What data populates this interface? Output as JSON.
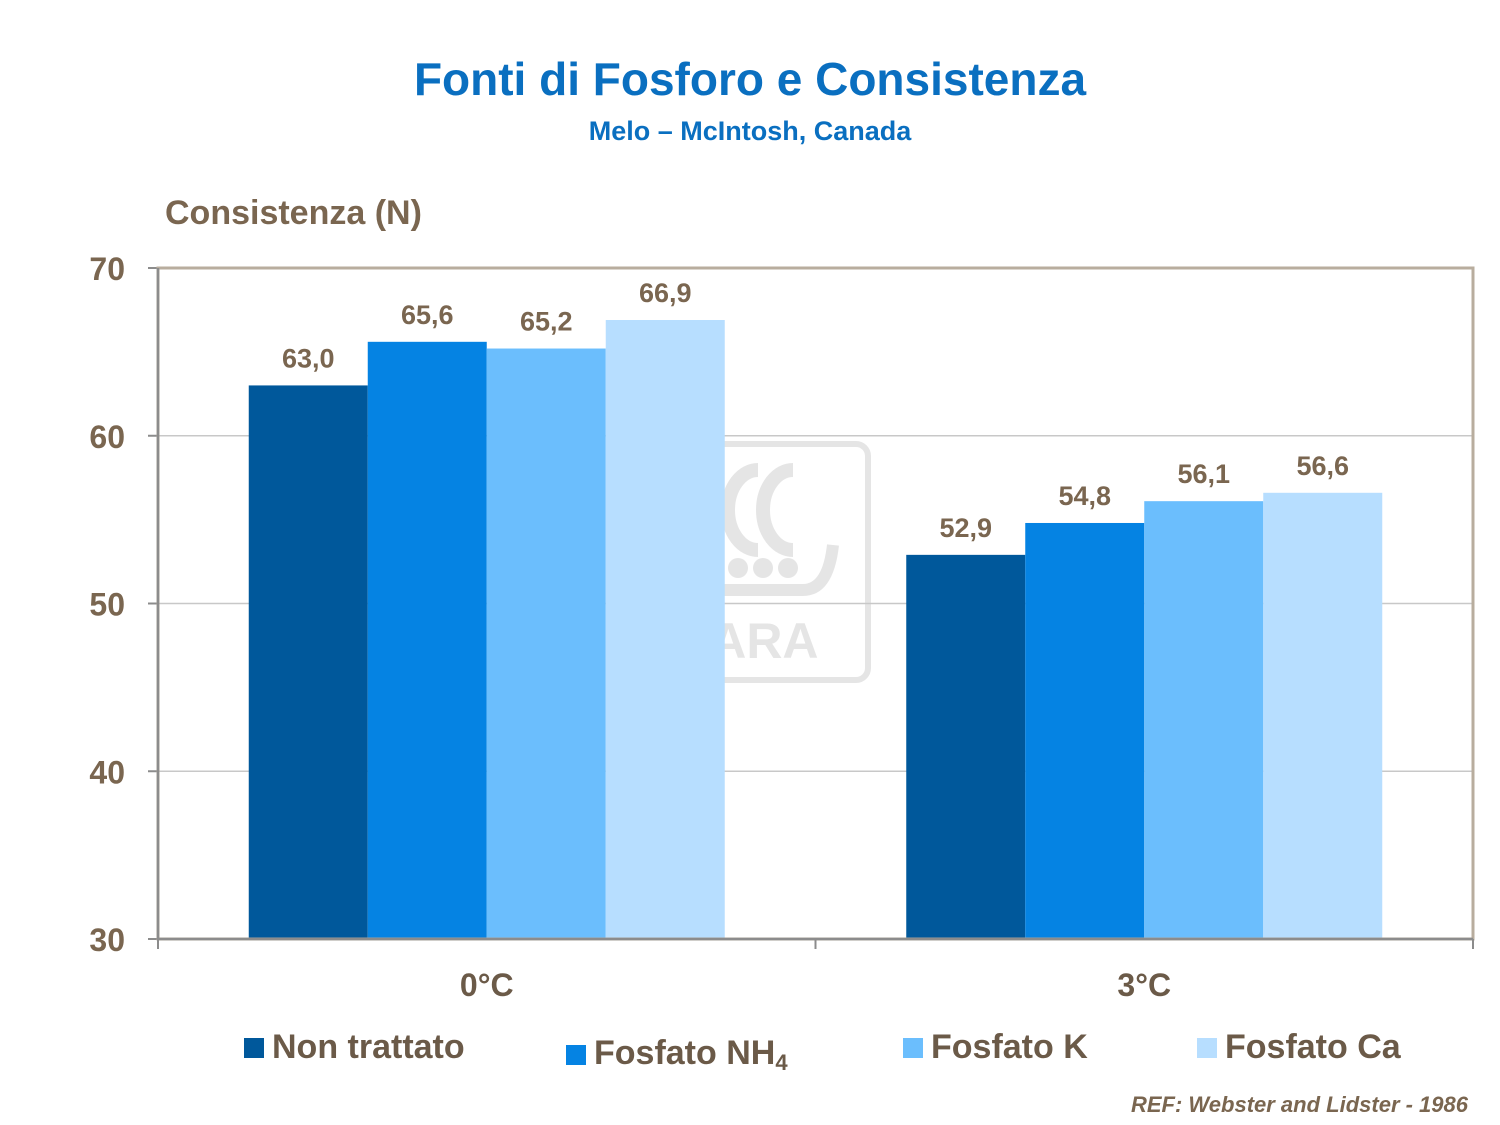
{
  "title": "Fonti di Fosforo e Consistenza",
  "subtitle": "Melo – McIntosh, Canada",
  "reference": "REF: Webster and Lidster - 1986",
  "watermark_text": "YARA",
  "colors": {
    "title": "#0a6fc0",
    "axis_text": "#7a6650",
    "grid": "#c8c8c8",
    "frame": "#b8ad9e"
  },
  "chart_data": {
    "type": "bar",
    "title": "Fonti di Fosforo e Consistenza",
    "subtitle": "Melo – McIntosh, Canada",
    "ylabel": "Consistenza (N)",
    "xlabel": "",
    "ylim": [
      30,
      70
    ],
    "yticks": [
      "70",
      "60",
      "50",
      "40",
      "30"
    ],
    "categories": [
      "0°C",
      "3°C"
    ],
    "grid": true,
    "legend_position": "bottom",
    "series": [
      {
        "name": "Non trattato",
        "color": "#00589b",
        "values": [
          63.0,
          52.9
        ],
        "labels": [
          "63,0",
          "52,9"
        ]
      },
      {
        "name": "Fosfato NH",
        "name_subscript": "4",
        "color": "#0583e3",
        "values": [
          65.6,
          54.8
        ],
        "labels": [
          "65,6",
          "54,8"
        ]
      },
      {
        "name": "Fosfato K",
        "color": "#6bbefd",
        "values": [
          65.2,
          56.1
        ],
        "labels": [
          "65,2",
          "56,1"
        ]
      },
      {
        "name": "Fosfato Ca",
        "color": "#b7deff",
        "values": [
          66.9,
          56.6
        ],
        "labels": [
          "66,9",
          "56,6"
        ]
      }
    ]
  }
}
